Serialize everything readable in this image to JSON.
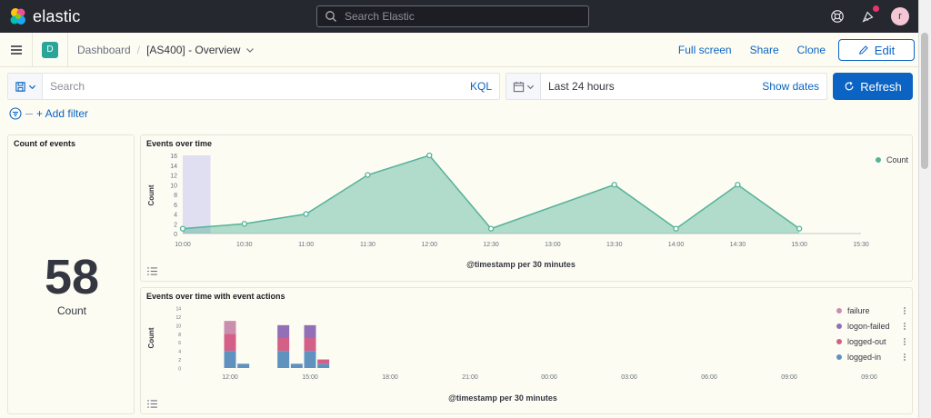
{
  "topbar": {
    "logo_text": "elastic",
    "search_placeholder": "Search Elastic",
    "avatar_initial": "r",
    "colors": {
      "background": "#25282f",
      "notification_dot": "#e7366f"
    }
  },
  "header": {
    "space_initial": "D",
    "breadcrumb_root": "Dashboard",
    "breadcrumb_current": "[AS400] - Overview",
    "full_screen": "Full screen",
    "share": "Share",
    "clone": "Clone",
    "edit": "Edit"
  },
  "query": {
    "search_placeholder": "Search",
    "language": "KQL",
    "time_range": "Last 24 hours",
    "show_dates": "Show dates",
    "refresh": "Refresh",
    "add_filter": "+ Add filter"
  },
  "panels": {
    "count": {
      "title": "Count of events",
      "value": "58",
      "label": "Count"
    },
    "events_over_time": {
      "title": "Events over time",
      "legend": "Count",
      "y_title": "Count",
      "x_title": "@timestamp per 30 minutes"
    },
    "events_actions": {
      "title": "Events over time with event actions",
      "y_title": "Count",
      "x_title": "@timestamp per 30 minutes",
      "legend": [
        "failure",
        "logon-failed",
        "logged-out",
        "logged-in"
      ]
    }
  },
  "chart_data": [
    {
      "type": "area",
      "title": "Events over time",
      "xlabel": "@timestamp per 30 minutes",
      "ylabel": "Count",
      "x": [
        "10:00",
        "10:30",
        "11:00",
        "11:30",
        "12:00",
        "12:30",
        "13:00",
        "13:30",
        "14:00",
        "14:30",
        "15:00",
        "15:30"
      ],
      "series": [
        {
          "name": "Count",
          "x": [
            "10:00",
            "10:30",
            "11:00",
            "11:30",
            "12:00",
            "12:30",
            "13:30",
            "14:00",
            "14:30",
            "15:00"
          ],
          "values": [
            1,
            2,
            4,
            12,
            16,
            1,
            10,
            1,
            10,
            1
          ]
        }
      ],
      "ylim": [
        0,
        16
      ],
      "yticks": [
        0,
        2,
        4,
        6,
        8,
        10,
        12,
        14,
        16
      ],
      "highlight_x": "10:00",
      "color": "#54b399",
      "legend_position": "top-right"
    },
    {
      "type": "bar",
      "stacked": true,
      "title": "Events over time with event actions",
      "xlabel": "@timestamp per 30 minutes",
      "ylabel": "Count",
      "tick_labels": [
        "12:00",
        "15:00",
        "18:00",
        "21:00",
        "00:00",
        "03:00",
        "06:00",
        "09:00",
        "09:00"
      ],
      "ylim": [
        0,
        14
      ],
      "yticks": [
        0,
        2,
        4,
        6,
        8,
        10,
        12,
        14
      ],
      "categories": [
        "12:00",
        "12:30",
        "14:00",
        "14:30",
        "15:00",
        "15:30"
      ],
      "series": [
        {
          "name": "logged-in",
          "color": "#6092c0",
          "values": [
            4,
            1,
            4,
            1,
            4,
            1
          ]
        },
        {
          "name": "logged-out",
          "color": "#d36086",
          "values": [
            4,
            0,
            3,
            0,
            3,
            1
          ]
        },
        {
          "name": "logon-failed",
          "color": "#9170b8",
          "values": [
            0,
            0,
            3,
            0,
            3,
            0
          ]
        },
        {
          "name": "failure",
          "color": "#ca8eae",
          "values": [
            3,
            0,
            0,
            0,
            0,
            0
          ]
        }
      ],
      "legend_position": "right"
    }
  ]
}
